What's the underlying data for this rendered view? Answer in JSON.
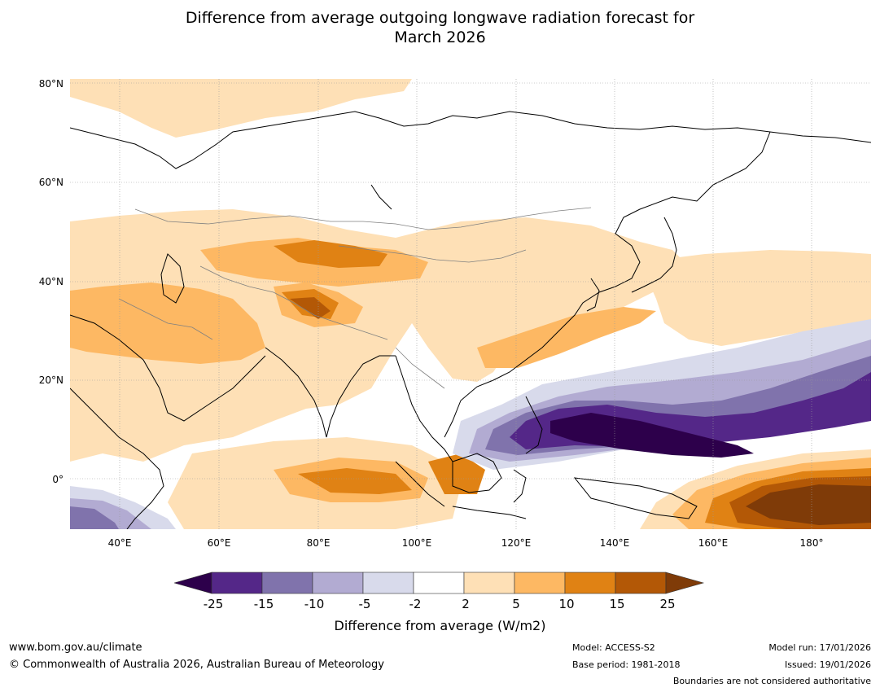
{
  "title": {
    "line1": "Difference from average outgoing longwave radiation forecast for",
    "line2": "March 2026"
  },
  "map": {
    "lat_labels": [
      "80°N",
      "60°N",
      "40°N",
      "20°N",
      "0°"
    ],
    "lon_labels": [
      "40°E",
      "60°E",
      "80°E",
      "100°E",
      "120°E",
      "140°E",
      "160°E",
      "180°"
    ],
    "colors": {
      "purple_darkest": "#2d004b",
      "purple_dark": "#542788",
      "purple_mid": "#8073ac",
      "purple_light": "#b2abd2",
      "purple_pale": "#d8daeb",
      "white": "#ffffff",
      "orange_pale": "#fee0b6",
      "orange_light": "#fdb863",
      "orange_mid": "#e08214",
      "orange_dark": "#b35806",
      "orange_darkest": "#7f3b08",
      "coast": "#000000",
      "border": "#808080",
      "grid": "#9a9a9a"
    }
  },
  "colorbar": {
    "ticks": [
      "-25",
      "-15",
      "-10",
      "-5",
      "-2",
      "2",
      "5",
      "10",
      "15",
      "25"
    ],
    "label": "Difference from average (W/m2)"
  },
  "footer": {
    "website": "www.bom.gov.au/climate",
    "copyright": "© Commonwealth of Australia 2026, Australian Bureau of Meteorology",
    "model": "Model: ACCESS-S2",
    "base_period": "Base period: 1981-2018",
    "model_run": "Model run: 17/01/2026",
    "issued": "Issued: 19/01/2026",
    "disclaimer": "Boundaries are not considered authoritative"
  }
}
